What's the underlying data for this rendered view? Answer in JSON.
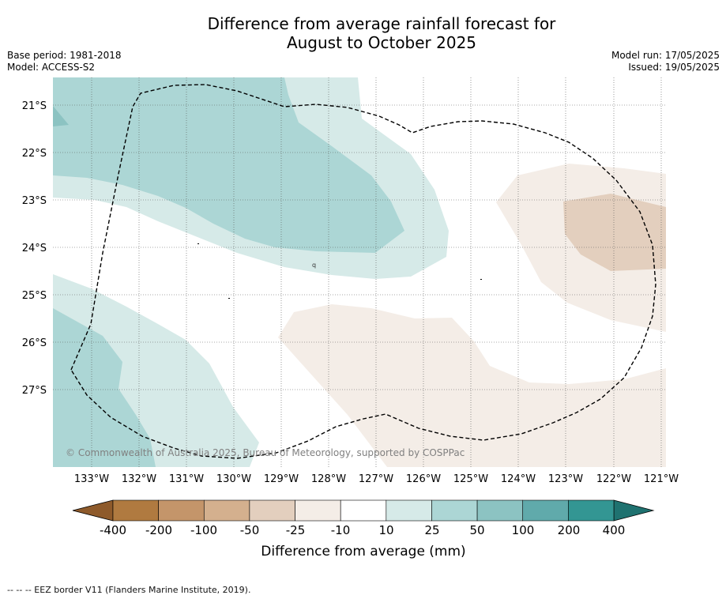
{
  "title_line1": "Difference from average rainfall forecast for",
  "title_line2": "August to October 2025",
  "base_period": "Base period: 1981-2018",
  "model": "Model: ACCESS-S2",
  "model_run": "Model run: 17/05/2025",
  "issued": "Issued: 19/05/2025",
  "copyright": "© Commonwealth of Australia 2025, Bureau of Meteorology, supported by COSPPac",
  "lat_labels": [
    "21°S",
    "22°S",
    "23°S",
    "24°S",
    "25°S",
    "26°S",
    "27°S"
  ],
  "lon_labels": [
    "133°W",
    "132°W",
    "131°W",
    "130°W",
    "129°W",
    "128°W",
    "127°W",
    "126°W",
    "125°W",
    "124°W",
    "123°W",
    "122°W",
    "121°W"
  ],
  "colorbar": {
    "label": "Difference from average (mm)",
    "tick_labels": [
      "-400",
      "-200",
      "-100",
      "-50",
      "-25",
      "-10",
      "10",
      "25",
      "50",
      "100",
      "200",
      "400"
    ],
    "colors": [
      "#8e5a2b",
      "#b07a40",
      "#c4956a",
      "#d4b08e",
      "#e3cfbe",
      "#f4ede7",
      "#ffffff",
      "#d6eae8",
      "#acd6d5",
      "#8cc3c2",
      "#60aaab",
      "#339693",
      "#1f7270"
    ]
  },
  "footer": "--  --  -- EEZ border V11 (Flanders Marine Institute, 2019)."
}
